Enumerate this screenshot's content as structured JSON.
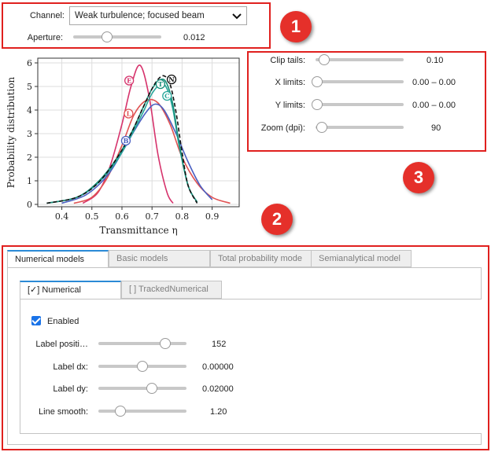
{
  "channel": {
    "label": "Channel:",
    "value": "Weak turbulence; focused beam"
  },
  "aperture": {
    "label": "Aperture:",
    "value": "0.012",
    "level": 0.45
  },
  "badges": [
    "1",
    "2",
    "3"
  ],
  "plot_settings": {
    "clip_tails": {
      "label": "Clip tails:",
      "value": "0.10",
      "level": 0.1
    },
    "x_limits": {
      "label": "X limits:",
      "value": "0.00 – 0.00",
      "level": 0.0
    },
    "y_limits": {
      "label": "Y limits:",
      "value": "0.00 – 0.00",
      "level": 0.0
    },
    "zoom": {
      "label": "Zoom (dpi):",
      "value": "90",
      "level": 0.06
    }
  },
  "tabs": [
    "Numerical models",
    "Basic models",
    "Total probability mode",
    "Semianalytical model"
  ],
  "subtabs": [
    "[✓] Numerical",
    "[ ] TrackedNumerical"
  ],
  "numerical": {
    "enabled_label": "Enabled",
    "label_position": {
      "label": "Label positi…",
      "value": "152",
      "level": 0.76
    },
    "label_dx": {
      "label": "Label dx:",
      "value": "0.00000",
      "level": 0.5
    },
    "label_dy": {
      "label": "Label dy:",
      "value": "0.02000",
      "level": 0.6
    },
    "line_smooth": {
      "label": "Line smooth:",
      "value": "1.20",
      "level": 0.24
    }
  },
  "chart_data": {
    "type": "line",
    "xlabel": "Transmittance η",
    "ylabel": "Probability distribution",
    "xlim": [
      0.32,
      0.99
    ],
    "ylim": [
      -0.1,
      6.2
    ],
    "xticks": [
      "0.4",
      "0.5",
      "0.6",
      "0.7",
      "0.8",
      "0.9"
    ],
    "xtick_values": [
      0.4,
      0.5,
      0.6,
      0.7,
      0.8,
      0.9
    ],
    "yticks": [
      "0",
      "1",
      "2",
      "3",
      "4",
      "5",
      "6"
    ],
    "ytick_values": [
      0,
      1,
      2,
      3,
      4,
      5,
      6
    ],
    "grid": true,
    "series": [
      {
        "marker": "E",
        "color": "#d6336c",
        "x": [
          0.47,
          0.52,
          0.56,
          0.6,
          0.63,
          0.66,
          0.69,
          0.72,
          0.75,
          0.77
        ],
        "y": [
          0.05,
          0.5,
          1.6,
          3.4,
          5.0,
          5.9,
          4.6,
          2.1,
          0.5,
          0.05
        ],
        "label_at": [
          0.624,
          5.25
        ]
      },
      {
        "marker": "L",
        "color": "#e05252",
        "x": [
          0.44,
          0.5,
          0.55,
          0.6,
          0.64,
          0.68,
          0.72,
          0.76,
          0.8,
          0.85,
          0.9,
          0.96
        ],
        "y": [
          0.05,
          0.3,
          1.1,
          2.5,
          3.8,
          4.4,
          4.3,
          3.4,
          2.0,
          0.9,
          0.3,
          0.05
        ],
        "label_at": [
          0.622,
          3.85
        ]
      },
      {
        "marker": "B",
        "color": "#4a5fc1",
        "x": [
          0.4,
          0.48,
          0.55,
          0.6,
          0.64,
          0.68,
          0.71,
          0.74,
          0.78,
          0.82,
          0.86,
          0.9
        ],
        "y": [
          0.05,
          0.4,
          1.2,
          2.2,
          3.1,
          3.9,
          4.25,
          4.0,
          3.0,
          1.8,
          0.8,
          0.2
        ],
        "label_at": [
          0.613,
          2.7
        ]
      },
      {
        "marker": "C",
        "color": "#26a69a",
        "x": [
          0.35,
          0.45,
          0.52,
          0.58,
          0.63,
          0.67,
          0.7,
          0.73,
          0.75,
          0.77,
          0.79,
          0.82,
          0.85
        ],
        "y": [
          0.05,
          0.3,
          0.9,
          1.8,
          2.9,
          3.9,
          4.7,
          5.1,
          4.9,
          4.0,
          2.5,
          0.8,
          0.1
        ],
        "label_at": [
          0.75,
          4.6
        ]
      },
      {
        "marker": "T",
        "color": "#1a8f7a",
        "x": [
          0.35,
          0.45,
          0.52,
          0.58,
          0.63,
          0.67,
          0.7,
          0.73,
          0.75,
          0.77,
          0.79,
          0.82,
          0.85
        ],
        "y": [
          0.05,
          0.3,
          0.95,
          1.9,
          3.0,
          4.1,
          4.9,
          5.3,
          5.1,
          4.2,
          2.6,
          0.8,
          0.1
        ],
        "label_at": [
          0.728,
          5.1
        ]
      },
      {
        "marker": "N",
        "color": "#111111",
        "x": [
          0.35,
          0.45,
          0.52,
          0.58,
          0.63,
          0.67,
          0.7,
          0.72,
          0.74,
          0.76,
          0.78,
          0.8,
          0.82,
          0.85
        ],
        "y": [
          0.05,
          0.3,
          0.9,
          1.9,
          3.0,
          4.1,
          4.9,
          5.3,
          5.45,
          5.1,
          3.9,
          2.2,
          0.8,
          0.05
        ],
        "label_at": [
          0.765,
          5.3
        ]
      }
    ]
  }
}
